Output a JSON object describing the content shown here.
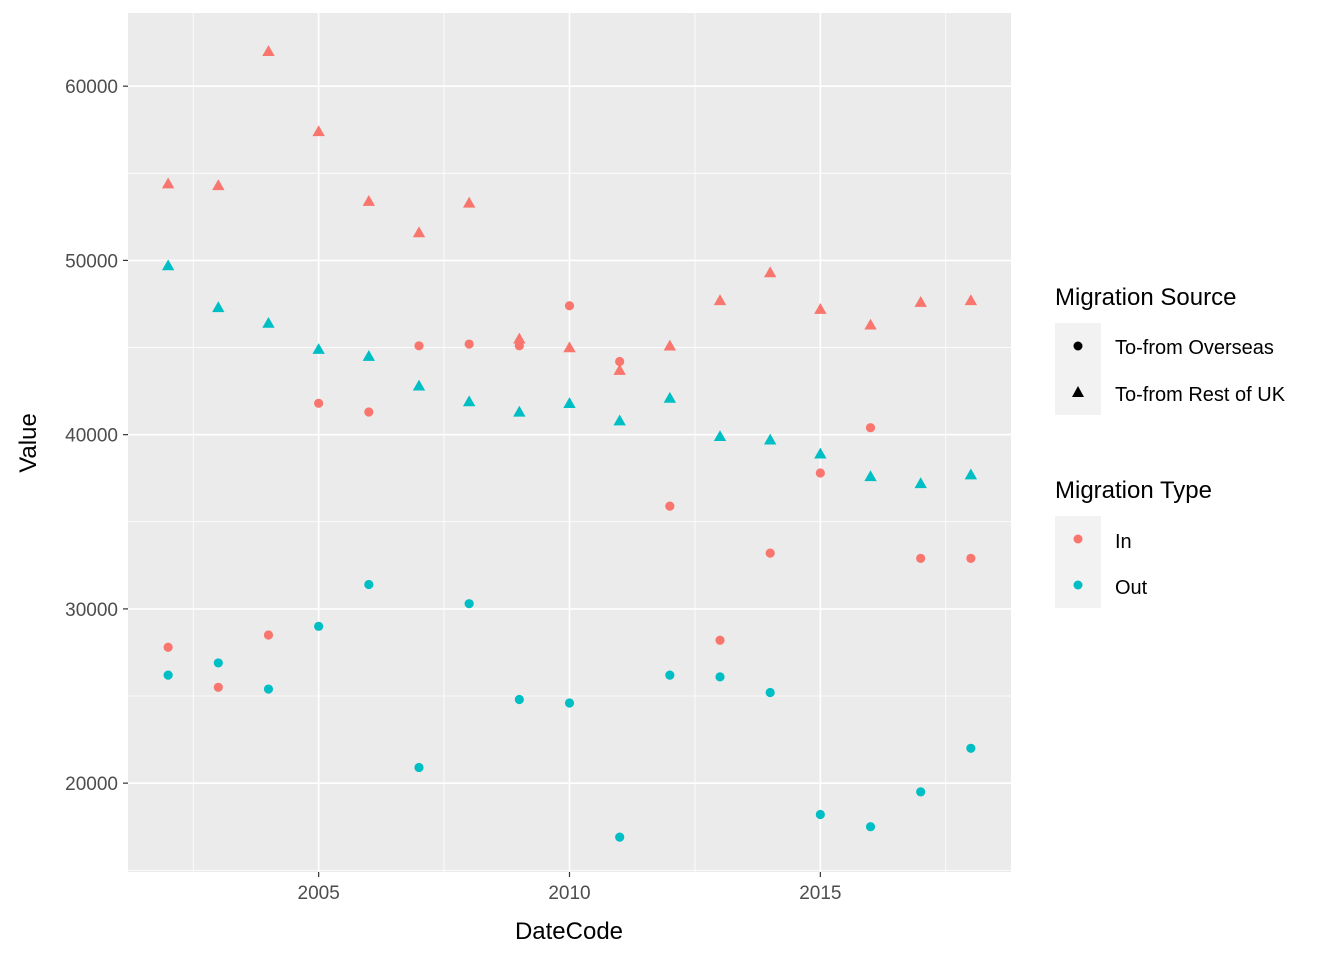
{
  "chart_data": {
    "type": "scatter",
    "xlabel": "DateCode",
    "ylabel": "Value",
    "xlim": [
      2001.2,
      2018.8
    ],
    "ylim": [
      14900,
      64200
    ],
    "x_ticks": [
      2005,
      2010,
      2015
    ],
    "x_tick_labels": [
      "2005",
      "2010",
      "2015"
    ],
    "y_ticks": [
      20000,
      30000,
      40000,
      50000,
      60000
    ],
    "y_tick_labels": [
      "20000",
      "30000",
      "40000",
      "50000",
      "60000"
    ],
    "grid": true,
    "legend_position": "right",
    "legends": [
      {
        "title": "Migration Source",
        "items": [
          {
            "label": "To-from Overseas",
            "shape": "circle"
          },
          {
            "label": "To-from Rest of UK",
            "shape": "triangle"
          }
        ]
      },
      {
        "title": "Migration Type",
        "items": [
          {
            "label": "In",
            "color": "#F8766D"
          },
          {
            "label": "Out",
            "color": "#00BFC4"
          }
        ]
      }
    ],
    "series": [
      {
        "type": "In",
        "source": "To-from Overseas",
        "color": "#F8766D",
        "shape": "circle",
        "x": [
          2002,
          2003,
          2004,
          2005,
          2006,
          2007,
          2008,
          2009,
          2010,
          2011,
          2012,
          2013,
          2014,
          2015,
          2016,
          2017,
          2018
        ],
        "y": [
          27800,
          25500,
          28500,
          41800,
          41300,
          45100,
          45200,
          45100,
          47400,
          44200,
          35900,
          28200,
          33200,
          37800,
          40400,
          32900,
          32900
        ]
      },
      {
        "type": "In",
        "source": "To-from Rest of UK",
        "color": "#F8766D",
        "shape": "triangle",
        "x": [
          2002,
          2003,
          2004,
          2005,
          2006,
          2007,
          2008,
          2009,
          2010,
          2011,
          2012,
          2013,
          2014,
          2015,
          2016,
          2017,
          2018
        ],
        "y": [
          54400,
          54300,
          62000,
          57400,
          53400,
          51600,
          53300,
          45500,
          45000,
          43700,
          45100,
          47700,
          49300,
          47200,
          46300,
          47600,
          47700
        ]
      },
      {
        "type": "Out",
        "source": "To-from Overseas",
        "color": "#00BFC4",
        "shape": "circle",
        "x": [
          2002,
          2003,
          2004,
          2005,
          2006,
          2007,
          2008,
          2009,
          2010,
          2011,
          2012,
          2013,
          2014,
          2015,
          2016,
          2017,
          2018
        ],
        "y": [
          26200,
          26900,
          25400,
          29000,
          31400,
          20900,
          30300,
          24800,
          24600,
          16900,
          26200,
          26100,
          25200,
          18200,
          17500,
          19500,
          22000
        ]
      },
      {
        "type": "Out",
        "source": "To-from Rest of UK",
        "color": "#00BFC4",
        "shape": "triangle",
        "x": [
          2002,
          2003,
          2004,
          2005,
          2006,
          2007,
          2008,
          2009,
          2010,
          2011,
          2012,
          2013,
          2014,
          2015,
          2016,
          2017,
          2018
        ],
        "y": [
          49700,
          47300,
          46400,
          44900,
          44500,
          42800,
          41900,
          41300,
          41800,
          40800,
          42100,
          39900,
          39700,
          38900,
          37600,
          37200,
          37700
        ]
      }
    ]
  }
}
